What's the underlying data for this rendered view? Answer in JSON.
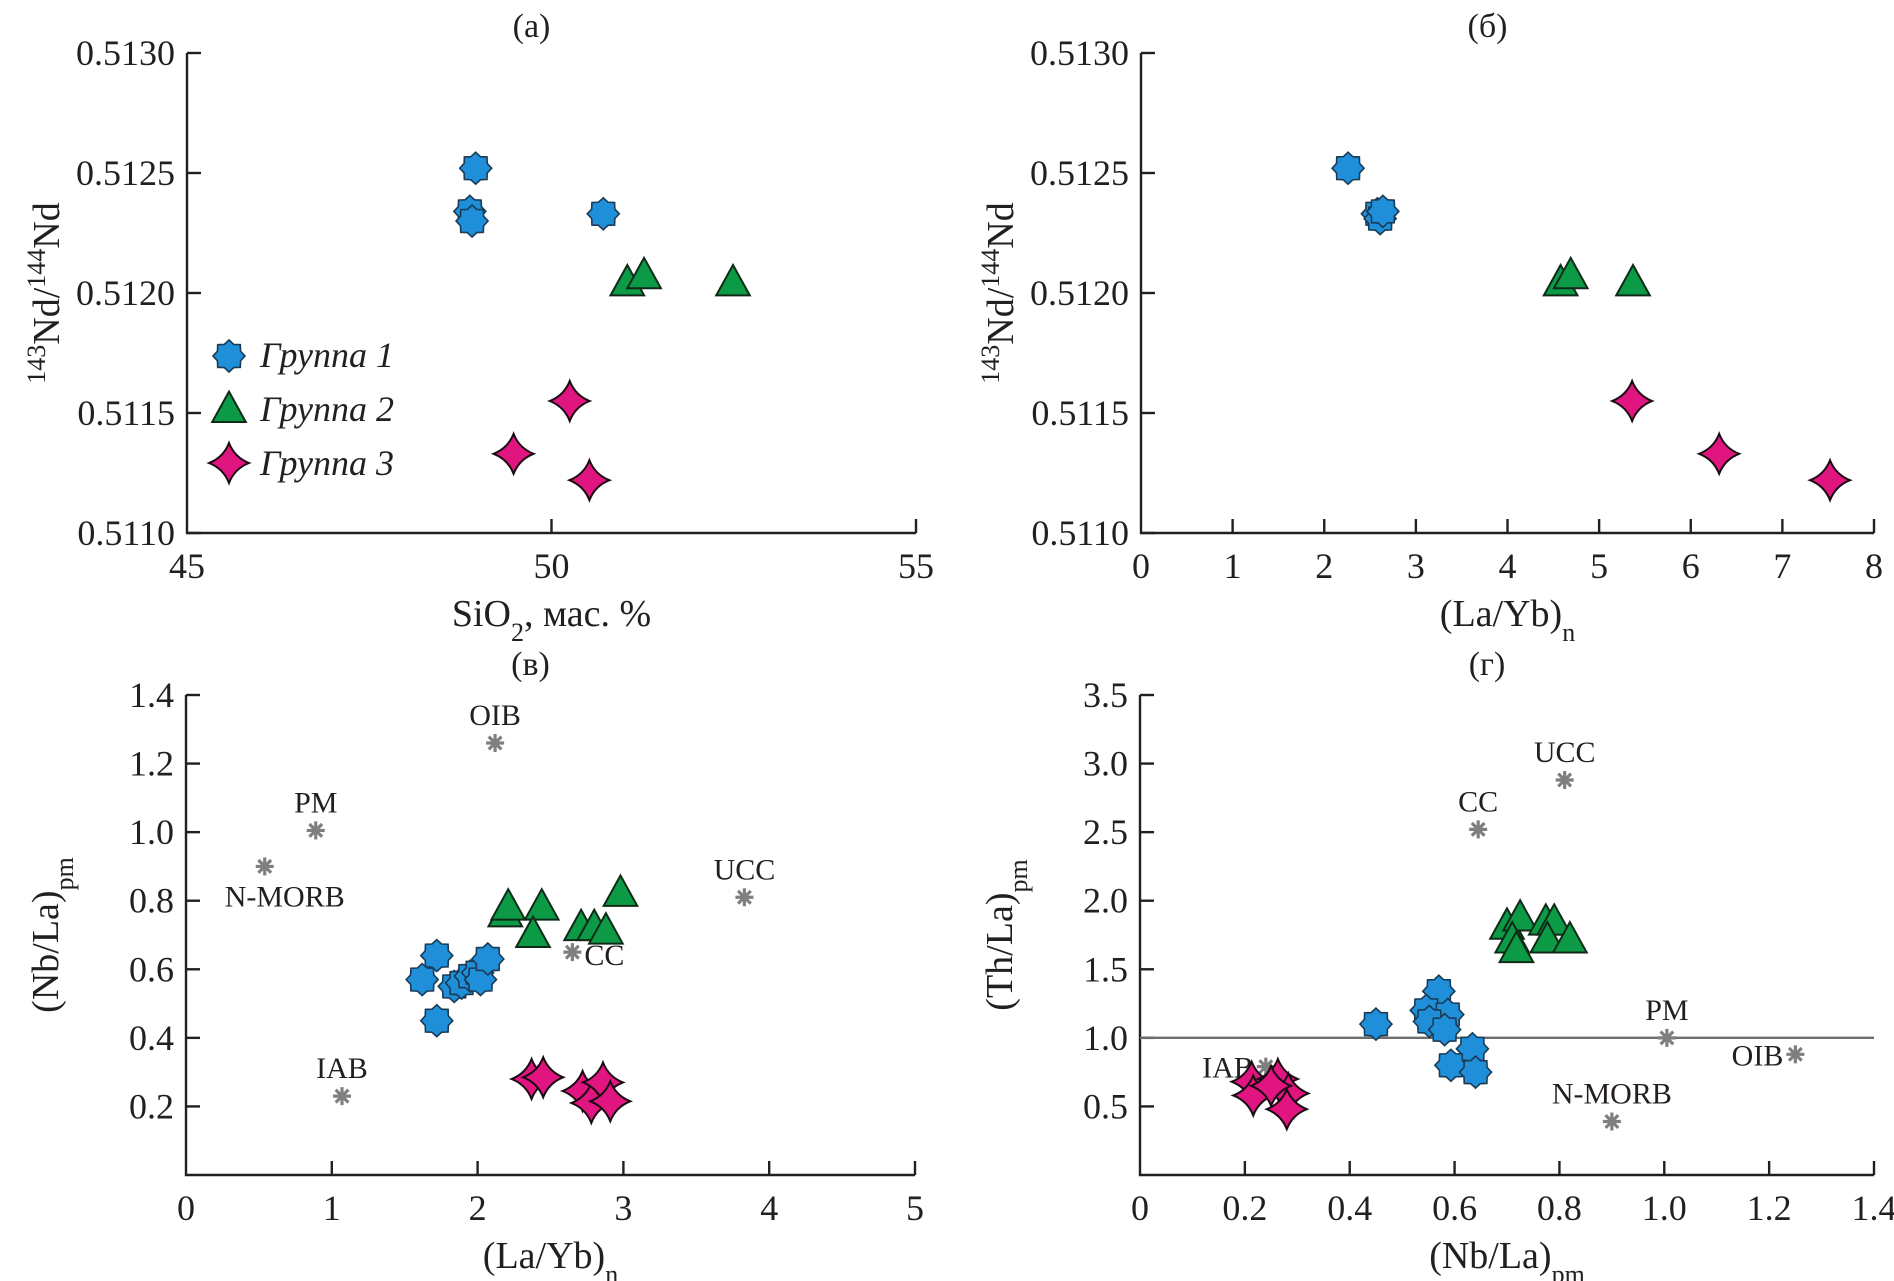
{
  "figure": {
    "legend": {
      "items": [
        {
          "label": "Группа 1",
          "marker": "eight-point-star",
          "color": "#1e8fd8"
        },
        {
          "label": "Группа 2",
          "marker": "triangle",
          "color": "#0c9a46"
        },
        {
          "label": "Группа 3",
          "marker": "four-point-star",
          "color": "#e0157f"
        }
      ]
    }
  },
  "chart_data": [
    {
      "id": "a",
      "type": "scatter",
      "title": "(a)",
      "xlabel": "SiO₂, мас. %",
      "ylabel": "¹⁴³Nd/¹⁴⁴Nd",
      "xlim": [
        45,
        55
      ],
      "ylim": [
        0.511,
        0.513
      ],
      "xticks": [
        45,
        50,
        55
      ],
      "xtick_labels": [
        "45",
        "50",
        "55"
      ],
      "yticks": [
        0.511,
        0.5115,
        0.512,
        0.5125,
        0.513
      ],
      "ytick_labels": [
        "0.5110",
        "0.5115",
        "0.5120",
        "0.5125",
        "0.5130"
      ],
      "legend": "left-middle",
      "grid": false,
      "series": [
        {
          "name": "Группа 1",
          "group": 1,
          "points": [
            [
              48.96,
              0.51252
            ],
            [
              48.88,
              0.51234
            ],
            [
              48.91,
              0.5123
            ],
            [
              50.71,
              0.51233
            ]
          ]
        },
        {
          "name": "Группа 2",
          "group": 2,
          "points": [
            [
              51.04,
              0.51204
            ],
            [
              51.27,
              0.51207
            ],
            [
              52.49,
              0.51204
            ]
          ]
        },
        {
          "name": "Группа 3",
          "group": 3,
          "points": [
            [
              50.25,
              0.51155
            ],
            [
              49.48,
              0.51133
            ],
            [
              50.52,
              0.51122
            ]
          ]
        }
      ],
      "references": [],
      "hline": null
    },
    {
      "id": "b",
      "type": "scatter",
      "title": "(б)",
      "xlabel": "(La/Yb)n",
      "ylabel": "¹⁴³Nd/¹⁴⁴Nd",
      "xlim": [
        0,
        8
      ],
      "ylim": [
        0.511,
        0.513
      ],
      "xticks": [
        0,
        1,
        2,
        3,
        4,
        5,
        6,
        7,
        8
      ],
      "xtick_labels": [
        "0",
        "1",
        "2",
        "3",
        "4",
        "5",
        "6",
        "7",
        "8"
      ],
      "yticks": [
        0.511,
        0.5115,
        0.512,
        0.5125,
        0.513
      ],
      "ytick_labels": [
        "0.5110",
        "0.5115",
        "0.5120",
        "0.5125",
        "0.5130"
      ],
      "grid": false,
      "series": [
        {
          "name": "Группа 1",
          "group": 1,
          "points": [
            [
              2.26,
              0.51252
            ],
            [
              2.58,
              0.51233
            ],
            [
              2.61,
              0.51231
            ],
            [
              2.64,
              0.51234
            ]
          ]
        },
        {
          "name": "Группа 2",
          "group": 2,
          "points": [
            [
              4.58,
              0.51204
            ],
            [
              4.69,
              0.51207
            ],
            [
              5.37,
              0.51204
            ]
          ]
        },
        {
          "name": "Группа 3",
          "group": 3,
          "points": [
            [
              5.36,
              0.51155
            ],
            [
              6.31,
              0.51133
            ],
            [
              7.52,
              0.51122
            ]
          ]
        }
      ],
      "references": [],
      "hline": null
    },
    {
      "id": "v",
      "type": "scatter",
      "title": "(в)",
      "xlabel": "(La/Yb)n",
      "ylabel": "(Nb/La)pm",
      "xlim": [
        0,
        5
      ],
      "ylim": [
        0,
        1.4
      ],
      "xticks": [
        0,
        1,
        2,
        3,
        4,
        5
      ],
      "xtick_labels": [
        "0",
        "1",
        "2",
        "3",
        "4",
        "5"
      ],
      "yticks": [
        0.2,
        0.4,
        0.6,
        0.8,
        1.0,
        1.2,
        1.4
      ],
      "ytick_labels": [
        "0.2",
        "0.4",
        "0.6",
        "0.8",
        "1.0",
        "1.2",
        "1.4"
      ],
      "grid": false,
      "series": [
        {
          "name": "Группа 1",
          "group": 1,
          "points": [
            [
              1.72,
              0.64
            ],
            [
              1.62,
              0.57
            ],
            [
              1.72,
              0.45
            ],
            [
              1.84,
              0.55
            ],
            [
              1.89,
              0.56
            ],
            [
              1.95,
              0.58
            ],
            [
              2.0,
              0.59
            ],
            [
              2.02,
              0.57
            ],
            [
              2.07,
              0.63
            ]
          ]
        },
        {
          "name": "Группа 2",
          "group": 2,
          "points": [
            [
              2.19,
              0.76
            ],
            [
              2.21,
              0.78
            ],
            [
              2.44,
              0.78
            ],
            [
              2.38,
              0.7
            ],
            [
              2.71,
              0.72
            ],
            [
              2.8,
              0.72
            ],
            [
              2.88,
              0.71
            ],
            [
              2.98,
              0.82
            ]
          ]
        },
        {
          "name": "Группа 3",
          "group": 3,
          "points": [
            [
              2.37,
              0.28
            ],
            [
              2.45,
              0.285
            ],
            [
              2.72,
              0.245
            ],
            [
              2.78,
              0.21
            ],
            [
              2.86,
              0.27
            ],
            [
              2.91,
              0.215
            ]
          ]
        }
      ],
      "references": [
        {
          "label": "OIB",
          "x": 2.12,
          "y": 1.26,
          "label_pos": "above"
        },
        {
          "label": "PM",
          "x": 0.89,
          "y": 1.005,
          "label_pos": "above"
        },
        {
          "label": "N-MORB",
          "x": 0.54,
          "y": 0.9,
          "label_pos": "below"
        },
        {
          "label": "UCC",
          "x": 3.83,
          "y": 0.81,
          "label_pos": "above"
        },
        {
          "label": "CC",
          "x": 2.65,
          "y": 0.65,
          "label_pos": "right"
        },
        {
          "label": "IAB",
          "x": 1.07,
          "y": 0.23,
          "label_pos": "above"
        }
      ],
      "hline": null
    },
    {
      "id": "g",
      "type": "scatter",
      "title": "(г)",
      "xlabel": "(Nb/La)pm",
      "ylabel": "(Th/La)pm",
      "xlim": [
        0,
        1.4
      ],
      "ylim": [
        0,
        3.5
      ],
      "xticks": [
        0,
        0.2,
        0.4,
        0.6,
        0.8,
        1.0,
        1.2,
        1.4
      ],
      "xtick_labels": [
        "0",
        "0.2",
        "0.4",
        "0.6",
        "0.8",
        "1.0",
        "1.2",
        "1.4"
      ],
      "yticks": [
        0.5,
        1.0,
        1.5,
        2.0,
        2.5,
        3.0,
        3.5
      ],
      "ytick_labels": [
        "0.5",
        "1.0",
        "1.5",
        "2.0",
        "2.5",
        "3.0",
        "3.5"
      ],
      "grid": false,
      "series": [
        {
          "name": "Группа 1",
          "group": 1,
          "points": [
            [
              0.45,
              1.1
            ],
            [
              0.57,
              1.34
            ],
            [
              0.546,
              1.2
            ],
            [
              0.587,
              1.17
            ],
            [
              0.552,
              1.12
            ],
            [
              0.581,
              1.06
            ],
            [
              0.634,
              0.92
            ],
            [
              0.593,
              0.8
            ],
            [
              0.64,
              0.75
            ]
          ]
        },
        {
          "name": "Группа 2",
          "group": 2,
          "points": [
            [
              0.7,
              1.81
            ],
            [
              0.725,
              1.87
            ],
            [
              0.774,
              1.84
            ],
            [
              0.79,
              1.84
            ],
            [
              0.71,
              1.71
            ],
            [
              0.718,
              1.64
            ],
            [
              0.777,
              1.71
            ],
            [
              0.82,
              1.71
            ]
          ]
        },
        {
          "name": "Группа 3",
          "group": 3,
          "points": [
            [
              0.213,
              0.68
            ],
            [
              0.216,
              0.58
            ],
            [
              0.263,
              0.7
            ],
            [
              0.283,
              0.595
            ],
            [
              0.28,
              0.48
            ],
            [
              0.25,
              0.65
            ]
          ]
        }
      ],
      "references": [
        {
          "label": "UCC",
          "x": 0.81,
          "y": 2.88,
          "label_pos": "above"
        },
        {
          "label": "CC",
          "x": 0.645,
          "y": 2.52,
          "label_pos": "above"
        },
        {
          "label": "PM",
          "x": 1.005,
          "y": 1.0,
          "label_pos": "above"
        },
        {
          "label": "OIB",
          "x": 1.25,
          "y": 0.88,
          "label_pos": "left"
        },
        {
          "label": "N-MORB",
          "x": 0.9,
          "y": 0.39,
          "label_pos": "above"
        },
        {
          "label": "IAB",
          "x": 0.24,
          "y": 0.79,
          "label_pos": "left"
        }
      ],
      "hline": {
        "y": 1.0
      }
    }
  ]
}
